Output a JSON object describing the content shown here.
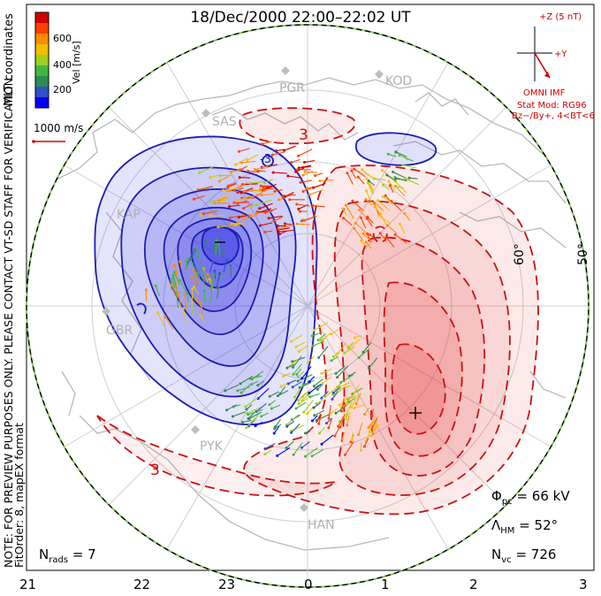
{
  "title": "18/Dec/2000 22:00–22:02 UT",
  "colorbar": {
    "label": "Vel [m/s]",
    "ticks": [
      "600",
      "400",
      "200"
    ],
    "colors": [
      "#d00000",
      "#ff4000",
      "#ff8c00",
      "#f0c000",
      "#a0d020",
      "#40b840",
      "#2e8b57",
      "#3050c8",
      "#0000ff"
    ]
  },
  "coordinate_label": "MLT coordinates",
  "velocity_scale": {
    "label": "1000 m/s"
  },
  "note": {
    "line1": "NOTE: FOR PREVIEW PURPOSES ONLY. PLEASE CONTACT VT-SD STAFF FOR VERIFICATION.",
    "line2": "FitOrder: 8, mapEX format"
  },
  "imf": {
    "z_label": "+Z (5 nT)",
    "y_label": "+Y",
    "source": "OMNI IMF",
    "model": "Stat Mod: RG96",
    "condition": "Bz−/By+, 4<BT<6"
  },
  "latitude_labels": [
    "60°",
    "50°"
  ],
  "radars": [
    "PGR",
    "KOD",
    "SAS",
    "KAP",
    "GBR",
    "PYK",
    "HAN"
  ],
  "contour_labels": {
    "neg": "-3",
    "pos1": "3",
    "pos2": "3",
    "neg_center": "−",
    "pos_center": "+"
  },
  "stats": {
    "phi_pc": {
      "symbol": "Φ",
      "sub": "pc",
      "value": "= 66 kV"
    },
    "lambda_hm": {
      "symbol": "Λ",
      "sub": "HM",
      "value": "= 52°"
    },
    "n_vc": {
      "symbol": "N",
      "sub": "vc",
      "value": "= 726"
    },
    "n_rads": {
      "symbol": "N",
      "sub": "rads",
      "value": "= 7"
    }
  },
  "mlt_labels": [
    "21",
    "22",
    "23",
    "0",
    "1",
    "2",
    "3"
  ],
  "colors": {
    "negative_fill": "#2e2ee6",
    "positive_fill": "#e63232",
    "negative_line": "#1c1cb4",
    "positive_line": "#cc1010",
    "imf_red": "#d00000",
    "boundary_green": "#7ed050"
  }
}
